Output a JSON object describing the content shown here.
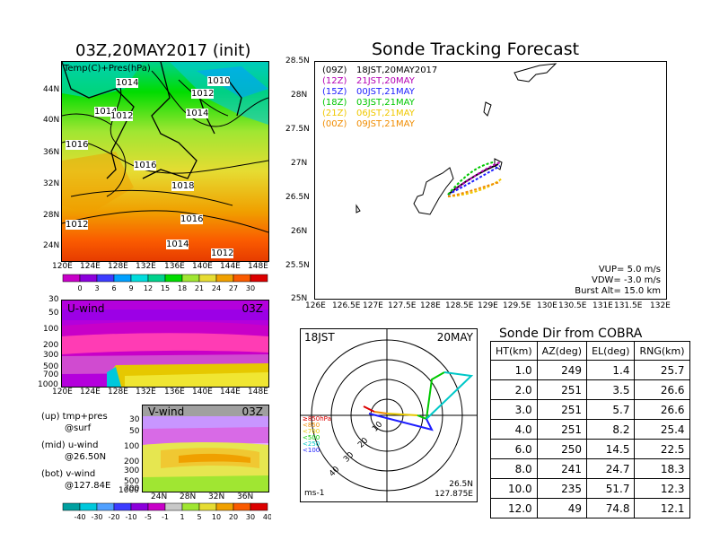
{
  "left_panel": {
    "title": "03Z,20MAY2017 (init)",
    "map_label": "Temp(C)+Pres(hPa)",
    "lat_ticks": [
      "44N",
      "40N",
      "36N",
      "32N",
      "28N",
      "24N"
    ],
    "lon_ticks": [
      "120E",
      "124E",
      "128E",
      "132E",
      "136E",
      "140E",
      "144E",
      "148E"
    ],
    "isobar_labels": [
      "1014",
      "1010",
      "1012",
      "1014",
      "1012",
      "1014",
      "1016",
      "1016",
      "1018",
      "1016",
      "1012",
      "1014",
      "1012"
    ],
    "colorbar_ticks": [
      "0",
      "3",
      "6",
      "9",
      "12",
      "15",
      "18",
      "21",
      "24",
      "27",
      "30"
    ],
    "colorbar_colors": [
      "#c800c8",
      "#8c00dc",
      "#3c3cff",
      "#00a0ff",
      "#00dcdc",
      "#00d28c",
      "#00dc00",
      "#a0e632",
      "#e6dc32",
      "#f0a000",
      "#fa5a00",
      "#dc0000"
    ]
  },
  "u_panel": {
    "label": "U-wind",
    "time": "03Z",
    "y_ticks": [
      "30",
      "50",
      "100",
      "200",
      "300",
      "500",
      "700",
      "1000"
    ],
    "x_ticks": [
      "120E",
      "124E",
      "128E",
      "132E",
      "136E",
      "140E",
      "144E",
      "148E"
    ]
  },
  "v_panel": {
    "label": "V-wind",
    "time": "03Z",
    "y_ticks": [
      "30",
      "50",
      "100",
      "200",
      "300",
      "500",
      "700",
      "1000"
    ],
    "x_ticks": [
      "24N",
      "28N",
      "32N",
      "36N"
    ]
  },
  "legend_notes": {
    "up_1": "(up) tmp+pres",
    "up_2": "@surf",
    "mid_1": "(mid) u-wind",
    "mid_2": "@26.50N",
    "bot_1": "(bot) v-wind",
    "bot_2": "@127.84E"
  },
  "wind_colorbar_ticks": [
    "-40",
    "-30",
    "-20",
    "-10",
    "-5",
    "-1",
    "1",
    "5",
    "10",
    "20",
    "30",
    "40"
  ],
  "wind_colorbar_colors": [
    "#00a0a0",
    "#00c8dc",
    "#50a0ff",
    "#3c3cff",
    "#8c00dc",
    "#c800c8",
    "#c8c8c8",
    "#a0e632",
    "#e6dc32",
    "#f0a000",
    "#fa5a00",
    "#dc0000"
  ],
  "tracking": {
    "title": "Sonde Tracking Forecast",
    "lat_ticks": [
      "28.5N",
      "28N",
      "27.5N",
      "27N",
      "26.5N",
      "26N",
      "25.5N",
      "25N"
    ],
    "lon_ticks": [
      "126E",
      "126.5E",
      "127E",
      "127.5E",
      "128E",
      "128.5E",
      "129E",
      "129.5E",
      "130E",
      "130.5E",
      "131E",
      "131.5E",
      "132E"
    ],
    "legend": [
      {
        "zone": "(09Z)",
        "time": "18JST,20MAY2017",
        "color": "#000000"
      },
      {
        "zone": "(12Z)",
        "time": "21JST,20MAY",
        "color": "#b400b4"
      },
      {
        "zone": "(15Z)",
        "time": "00JST,21MAY",
        "color": "#1e1eff"
      },
      {
        "zone": "(18Z)",
        "time": "03JST,21MAY",
        "color": "#00c800"
      },
      {
        "zone": "(21Z)",
        "time": "06JST,21MAY",
        "color": "#f0c800"
      },
      {
        "zone": "(00Z)",
        "time": "09JST,21MAY",
        "color": "#f08c00"
      }
    ],
    "vup": "VUP= 5.0 m/s",
    "vdw": "VDW= -3.0 m/s",
    "burst": "Burst Alt= 15.0 km"
  },
  "polar": {
    "time": "18JST",
    "date": "20MAY",
    "ring_labels": [
      "10",
      "20",
      "30",
      "40"
    ],
    "level_legend": [
      {
        "text": "≥850hPa",
        "color": "#dc0000"
      },
      {
        "text": "<850",
        "color": "#f08c00"
      },
      {
        "text": "<700",
        "color": "#e6c800"
      },
      {
        "text": "<500",
        "color": "#00c800"
      },
      {
        "text": "<250",
        "color": "#00c8c8"
      },
      {
        "text": "<100",
        "color": "#1e1eff"
      }
    ],
    "unit": "ms-1",
    "loc1": "26.5N",
    "loc2": "127.875E"
  },
  "cobra": {
    "title": "Sonde Dir from COBRA",
    "headers": [
      "HT(km)",
      "AZ(deg)",
      "EL(deg)",
      "RNG(km)"
    ],
    "rows": [
      [
        "1.0",
        "249",
        "1.4",
        "25.7"
      ],
      [
        "2.0",
        "251",
        "3.5",
        "26.6"
      ],
      [
        "3.0",
        "251",
        "5.7",
        "26.6"
      ],
      [
        "4.0",
        "251",
        "8.2",
        "25.4"
      ],
      [
        "6.0",
        "250",
        "14.5",
        "22.5"
      ],
      [
        "8.0",
        "241",
        "24.7",
        "18.3"
      ],
      [
        "10.0",
        "235",
        "51.7",
        "12.3"
      ],
      [
        "12.0",
        "49",
        "74.8",
        "12.1"
      ]
    ]
  }
}
